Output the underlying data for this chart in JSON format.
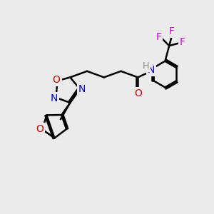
{
  "bg_color": "#ebebeb",
  "bond_color": "#000000",
  "nitrogen_color": "#0000cc",
  "oxygen_color": "#cc0000",
  "fluorine_color": "#cc00cc",
  "bond_width": 1.8,
  "font_size": 10,
  "fig_size": [
    3.0,
    3.0
  ],
  "dpi": 100,
  "xlim": [
    0,
    10
  ],
  "ylim": [
    0,
    10
  ]
}
